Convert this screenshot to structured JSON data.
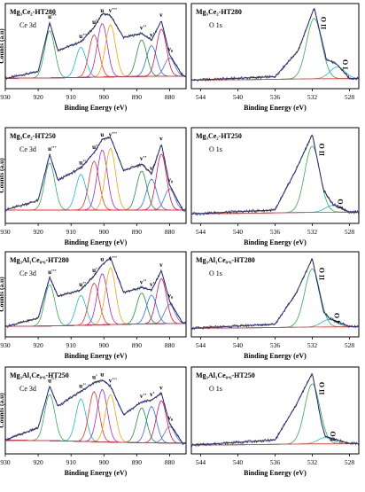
{
  "chart_data": [
    {
      "type": "line",
      "sample": "Mg₃Ce₂-HT280",
      "region": "Ce 3d",
      "xlabel": "Binding Energy (eV)",
      "ylabel": "Counts (a.u)",
      "xlim": [
        930,
        875
      ],
      "x_ticks": [
        930,
        920,
        910,
        900,
        890,
        880
      ],
      "ylim": [
        0,
        1
      ],
      "peaks": [
        {
          "label": "u'''",
          "x": 916.5
        },
        {
          "label": "u''",
          "x": 907
        },
        {
          "label": "u'",
          "x": 903
        },
        {
          "label": "u",
          "x": 900.5
        },
        {
          "label": "v'''",
          "x": 898
        },
        {
          "label": "v''",
          "x": 888.5
        },
        {
          "label": "v'",
          "x": 885.5
        },
        {
          "label": "v",
          "x": 882.5
        },
        {
          "label": "v₀",
          "x": 880
        }
      ],
      "envelope_anchors": [
        [
          930,
          0.12
        ],
        [
          920,
          0.2
        ],
        [
          916.5,
          0.78
        ],
        [
          914,
          0.45
        ],
        [
          907,
          0.55
        ],
        [
          903,
          0.72
        ],
        [
          900.5,
          0.88
        ],
        [
          898,
          0.86
        ],
        [
          894,
          0.6
        ],
        [
          888.5,
          0.65
        ],
        [
          885.5,
          0.57
        ],
        [
          882.5,
          0.8
        ],
        [
          880,
          0.4
        ],
        [
          876,
          0.15
        ]
      ]
    },
    {
      "type": "line",
      "sample": "Mg₃Ce₂-HT280",
      "region": "O 1s",
      "xlabel": "Binding Energy (eV)",
      "ylabel": "",
      "xlim": [
        545,
        527
      ],
      "x_ticks": [
        544,
        540,
        536,
        532,
        528
      ],
      "ylim": [
        0,
        1
      ],
      "peaks": [
        {
          "label": "O II",
          "x": 531.8
        },
        {
          "label": "O I",
          "x": 529.3
        }
      ],
      "envelope_anchors": [
        [
          545,
          0.1
        ],
        [
          536,
          0.14
        ],
        [
          533.5,
          0.45
        ],
        [
          531.8,
          0.95
        ],
        [
          530.5,
          0.35
        ],
        [
          529.3,
          0.28
        ],
        [
          528,
          0.12
        ]
      ]
    },
    {
      "type": "line",
      "sample": "Mg₃Ce₂-HT250",
      "region": "Ce 3d",
      "xlabel": "Binding Energy (eV)",
      "ylabel": "Counts (a.u)",
      "xlim": [
        930,
        875
      ],
      "x_ticks": [
        930,
        920,
        910,
        900,
        890,
        880
      ],
      "ylim": [
        0,
        1
      ],
      "peaks": [
        {
          "label": "u'''",
          "x": 916.5
        },
        {
          "label": "u''",
          "x": 907
        },
        {
          "label": "u'",
          "x": 903
        },
        {
          "label": "u",
          "x": 900.5
        },
        {
          "label": "v'''",
          "x": 898
        },
        {
          "label": "v''",
          "x": 888.5
        },
        {
          "label": "v'",
          "x": 885.5
        },
        {
          "label": "v",
          "x": 882.5
        },
        {
          "label": "v₀",
          "x": 880
        }
      ],
      "envelope_anchors": [
        [
          930,
          0.14
        ],
        [
          920,
          0.24
        ],
        [
          916.5,
          0.72
        ],
        [
          914,
          0.45
        ],
        [
          907,
          0.58
        ],
        [
          903,
          0.74
        ],
        [
          900.5,
          0.88
        ],
        [
          898,
          0.9
        ],
        [
          894,
          0.55
        ],
        [
          888.5,
          0.62
        ],
        [
          885.5,
          0.52
        ],
        [
          882.5,
          0.83
        ],
        [
          880,
          0.4
        ],
        [
          876,
          0.14
        ]
      ]
    },
    {
      "type": "line",
      "sample": "Mg₃Ce₂-HT250",
      "region": "O 1s",
      "xlabel": "Binding Energy (eV)",
      "ylabel": "",
      "xlim": [
        545,
        527
      ],
      "x_ticks": [
        544,
        540,
        536,
        532,
        528
      ],
      "ylim": [
        0,
        1
      ],
      "peaks": [
        {
          "label": "O II",
          "x": 532
        },
        {
          "label": "O I",
          "x": 529.8
        }
      ],
      "envelope_anchors": [
        [
          545,
          0.1
        ],
        [
          536,
          0.14
        ],
        [
          533.8,
          0.55
        ],
        [
          532,
          0.93
        ],
        [
          530.8,
          0.35
        ],
        [
          529.8,
          0.2
        ],
        [
          528,
          0.12
        ]
      ]
    },
    {
      "type": "line",
      "sample": "Mg₃Al₁Ce₀.₆-HT280",
      "region": "Ce 3d",
      "xlabel": "Binding Energy (eV)",
      "ylabel": "Counts (a.u)",
      "xlim": [
        930,
        875
      ],
      "x_ticks": [
        930,
        920,
        910,
        900,
        890,
        880
      ],
      "ylim": [
        0,
        1
      ],
      "peaks": [
        {
          "label": "u'''",
          "x": 916.5
        },
        {
          "label": "u''",
          "x": 907
        },
        {
          "label": "u'",
          "x": 903
        },
        {
          "label": "u",
          "x": 900.5
        },
        {
          "label": "v'''",
          "x": 898
        },
        {
          "label": "v''",
          "x": 888.5
        },
        {
          "label": "v'",
          "x": 885.5
        },
        {
          "label": "v",
          "x": 882.5
        },
        {
          "label": "v₀",
          "x": 880
        }
      ],
      "envelope_anchors": [
        [
          930,
          0.12
        ],
        [
          920,
          0.22
        ],
        [
          916.5,
          0.7
        ],
        [
          914,
          0.48
        ],
        [
          907,
          0.55
        ],
        [
          903,
          0.72
        ],
        [
          900.5,
          0.85
        ],
        [
          898,
          0.93
        ],
        [
          894,
          0.52
        ],
        [
          888.5,
          0.58
        ],
        [
          885.5,
          0.55
        ],
        [
          882.5,
          0.78
        ],
        [
          880,
          0.42
        ],
        [
          876,
          0.16
        ]
      ]
    },
    {
      "type": "line",
      "sample": "Mg₃Al₁Ce₀.₆-HT280",
      "region": "O 1s",
      "xlabel": "Binding Energy (eV)",
      "ylabel": "",
      "xlim": [
        545,
        527
      ],
      "x_ticks": [
        544,
        540,
        536,
        532,
        528
      ],
      "ylim": [
        0,
        1
      ],
      "peaks": [
        {
          "label": "O II",
          "x": 532
        },
        {
          "label": "O I",
          "x": 530.2
        }
      ],
      "envelope_anchors": [
        [
          545,
          0.1
        ],
        [
          536,
          0.15
        ],
        [
          533.8,
          0.5
        ],
        [
          532,
          0.92
        ],
        [
          530.8,
          0.3
        ],
        [
          530.2,
          0.22
        ],
        [
          528,
          0.12
        ]
      ]
    },
    {
      "type": "line",
      "sample": "Mg₃Al₁Ce₀.₆-HT250",
      "region": "Ce 3d",
      "xlabel": "Binding Energy (eV)",
      "ylabel": "Counts (a.u)",
      "xlim": [
        930,
        875
      ],
      "x_ticks": [
        930,
        920,
        910,
        900,
        890,
        880
      ],
      "ylim": [
        0,
        1
      ],
      "peaks": [
        {
          "label": "u'''",
          "x": 916.5
        },
        {
          "label": "u''",
          "x": 907
        },
        {
          "label": "u'",
          "x": 903
        },
        {
          "label": "u",
          "x": 900.5
        },
        {
          "label": "v'''",
          "x": 898
        },
        {
          "label": "v''",
          "x": 888.5
        },
        {
          "label": "v'",
          "x": 885.5
        },
        {
          "label": "v",
          "x": 882.5
        },
        {
          "label": "v₀",
          "x": 880
        }
      ],
      "envelope_anchors": [
        [
          930,
          0.16
        ],
        [
          920,
          0.3
        ],
        [
          916.5,
          0.78
        ],
        [
          914,
          0.55
        ],
        [
          907,
          0.72
        ],
        [
          903,
          0.82
        ],
        [
          900.5,
          0.85
        ],
        [
          898,
          0.78
        ],
        [
          894,
          0.45
        ],
        [
          888.5,
          0.6
        ],
        [
          885.5,
          0.62
        ],
        [
          882.5,
          0.7
        ],
        [
          880,
          0.35
        ],
        [
          876,
          0.12
        ]
      ]
    },
    {
      "type": "line",
      "sample": "Mg₃Al₁Ce₀.₆-HT250",
      "region": "O 1s",
      "xlabel": "Binding Energy (eV)",
      "ylabel": "",
      "xlim": [
        545,
        527
      ],
      "x_ticks": [
        544,
        540,
        536,
        532,
        528
      ],
      "ylim": [
        0,
        1
      ],
      "peaks": [
        {
          "label": "O II",
          "x": 532
        },
        {
          "label": "O I",
          "x": 530.6
        }
      ],
      "envelope_anchors": [
        [
          545,
          0.1
        ],
        [
          536,
          0.16
        ],
        [
          533.8,
          0.55
        ],
        [
          532,
          0.93
        ],
        [
          531,
          0.35
        ],
        [
          530.6,
          0.2
        ],
        [
          528,
          0.12
        ]
      ]
    }
  ],
  "colors": {
    "data": "#2b2b2b",
    "envelope": "#2c34c7",
    "background": "#ff2a2a",
    "component_palette": [
      "#34a853",
      "#20b7c9",
      "#e0322f",
      "#9a2eb5",
      "#e8a317",
      "#1f8f3a",
      "#2c6fe0",
      "#c2185b",
      "#5c6bc0"
    ]
  }
}
